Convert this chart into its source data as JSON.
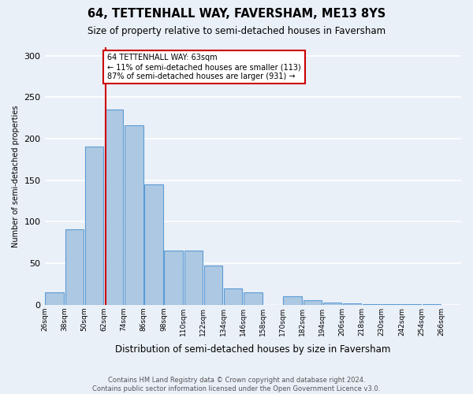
{
  "title": "64, TETTENHALL WAY, FAVERSHAM, ME13 8YS",
  "subtitle": "Size of property relative to semi-detached houses in Faversham",
  "xlabel": "Distribution of semi-detached houses by size in Faversham",
  "ylabel": "Number of semi-detached properties",
  "footer": "Contains HM Land Registry data © Crown copyright and database right 2024.\nContains public sector information licensed under the Open Government Licence v3.0.",
  "annotation_line1": "64 TETTENHALL WAY: 63sqm",
  "annotation_line2": "← 11% of semi-detached houses are smaller (113)",
  "annotation_line3": "87% of semi-detached houses are larger (931) →",
  "property_sqm": 63,
  "bins": [
    26,
    38,
    50,
    62,
    74,
    86,
    98,
    110,
    122,
    134,
    146,
    158,
    170,
    182,
    194,
    206,
    218,
    230,
    242,
    254,
    266
  ],
  "bin_labels": [
    "26sqm",
    "38sqm",
    "50sqm",
    "62sqm",
    "74sqm",
    "86sqm",
    "98sqm",
    "110sqm",
    "122sqm",
    "134sqm",
    "146sqm",
    "158sqm",
    "170sqm",
    "182sqm",
    "194sqm",
    "206sqm",
    "218sqm",
    "230sqm",
    "242sqm",
    "254sqm",
    "266sqm"
  ],
  "counts": [
    15,
    91,
    190,
    235,
    216,
    145,
    65,
    65,
    47,
    20,
    15,
    0,
    10,
    5,
    3,
    2,
    1,
    1,
    1,
    1
  ],
  "bar_color": "#adc8e2",
  "bar_edge_color": "#5b9bd5",
  "highlight_line_color": "#cc0000",
  "box_color": "#cc0000",
  "background_color": "#eaf0f8",
  "grid_color": "#ffffff",
  "ylim": [
    0,
    310
  ],
  "yticks": [
    0,
    50,
    100,
    150,
    200,
    250,
    300
  ]
}
